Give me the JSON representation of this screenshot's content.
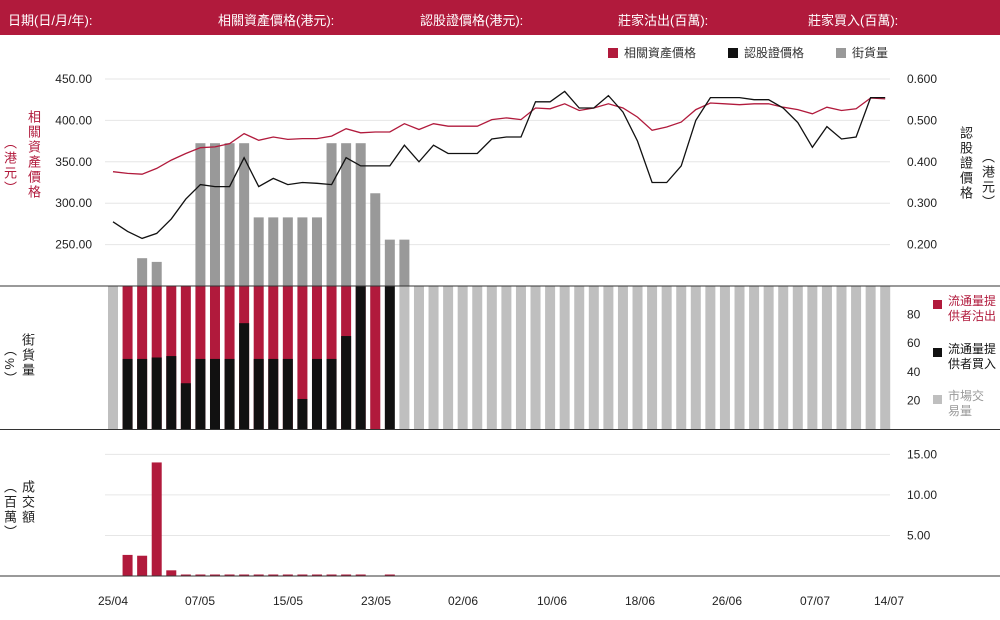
{
  "header": {
    "date": "日期(日/月/年):",
    "underlying": "相關資產價格(港元):",
    "warrant": "認股證價格(港元):",
    "sold": "莊家沽出(百萬):",
    "bought": "莊家買入(百萬):"
  },
  "legend": {
    "underlying": "相關資產價格",
    "warrant": "認股證價格",
    "outstanding": "街貨量"
  },
  "labels": {
    "left_axis_top": "相關資產價格",
    "left_axis_top_unit": "（港元）",
    "right_axis_top": "認股證價格",
    "right_axis_top_unit": "（港元）",
    "left_axis_mid": "街貨量",
    "left_axis_mid_unit": "（%）",
    "left_axis_bottom": "成交額",
    "left_axis_bottom_unit": "（百萬）",
    "mid_legend_sold": "流通量提供者沽出",
    "mid_legend_bought": "流通量提供者買入",
    "mid_legend_market": "市場交易量"
  },
  "colors": {
    "header_bg": "#b11a3c",
    "underlying": "#b11a3c",
    "warrant": "#111111",
    "outstanding": "#999999",
    "lp_sold": "#b11a3c",
    "lp_bought": "#111111",
    "market": "#bfbfbf",
    "turnover": "#b11a3c"
  },
  "chart_data": [
    {
      "type": "line",
      "title": "",
      "x_tick_labels": [
        "25/04",
        "07/05",
        "15/05",
        "23/05",
        "02/06",
        "10/06",
        "18/06",
        "26/06",
        "07/07",
        "14/07"
      ],
      "left_axis": {
        "ticks": [
          "450.00",
          "400.00",
          "350.00",
          "300.00",
          "250.00"
        ],
        "range": [
          200,
          450
        ]
      },
      "right_axis": {
        "ticks": [
          "0.600",
          "0.500",
          "0.400",
          "0.300",
          "0.200"
        ],
        "range": [
          0.1,
          0.6
        ]
      },
      "series": [
        {
          "name": "相關資產價格",
          "axis": "left",
          "values": [
            338,
            336,
            335,
            342,
            352,
            360,
            367,
            368,
            372,
            384,
            376,
            380,
            377,
            378,
            378,
            381,
            390,
            385,
            386,
            386,
            396,
            389,
            396,
            393,
            393,
            393,
            401,
            403,
            401,
            415,
            414,
            420,
            412,
            415,
            420,
            415,
            404,
            388,
            392,
            398,
            413,
            421,
            420,
            419,
            420,
            420,
            416,
            413,
            408,
            416,
            412,
            414,
            427,
            426
          ]
        },
        {
          "name": "認股證價格",
          "axis": "right",
          "values": [
            0.255,
            0.232,
            0.215,
            0.227,
            0.262,
            0.31,
            0.345,
            0.34,
            0.34,
            0.41,
            0.34,
            0.36,
            0.345,
            0.35,
            0.348,
            0.345,
            0.41,
            0.39,
            0.39,
            0.39,
            0.44,
            0.4,
            0.44,
            0.42,
            0.42,
            0.42,
            0.455,
            0.46,
            0.46,
            0.545,
            0.545,
            0.57,
            0.53,
            0.53,
            0.56,
            0.52,
            0.45,
            0.35,
            0.35,
            0.39,
            0.5,
            0.555,
            0.555,
            0.555,
            0.55,
            0.55,
            0.53,
            0.495,
            0.435,
            0.485,
            0.455,
            0.46,
            0.555,
            0.555
          ]
        },
        {
          "name": "街貨量",
          "axis": "left_pct",
          "values": [
            0,
            0,
            15,
            13,
            0,
            0,
            77,
            77,
            77,
            77,
            37,
            37,
            37,
            37,
            37,
            77,
            77,
            77,
            50,
            25,
            25,
            0,
            0,
            0,
            0,
            0,
            0,
            0,
            0,
            0,
            0,
            0,
            0,
            0,
            0,
            0,
            0,
            0,
            0,
            0,
            0,
            0,
            0,
            0,
            0,
            0,
            0,
            0,
            0,
            0,
            0,
            0,
            0,
            0
          ]
        }
      ]
    },
    {
      "type": "bar",
      "title": "",
      "y_axis": {
        "ticks": [
          "80",
          "60",
          "40",
          "20"
        ],
        "range": [
          0,
          100
        ]
      },
      "series": [
        {
          "name": "流通量提供者沽出",
          "values": [
            0,
            100,
            100,
            100,
            100,
            100,
            100,
            100,
            100,
            100,
            100,
            100,
            100,
            100,
            100,
            100,
            100,
            100,
            100,
            0,
            0,
            0,
            0,
            0,
            0,
            0,
            0,
            0,
            0,
            0,
            0,
            0,
            0,
            0,
            0,
            0,
            0,
            0,
            0,
            0,
            0,
            0,
            0,
            0,
            0,
            0,
            0,
            0,
            0,
            0,
            0,
            0,
            0,
            0
          ]
        },
        {
          "name": "流通量提供者買入",
          "values": [
            0,
            49,
            49,
            50,
            51,
            32,
            49,
            49,
            49,
            74,
            49,
            49,
            49,
            21,
            49,
            49,
            65,
            100,
            0,
            100,
            0,
            0,
            0,
            0,
            0,
            0,
            0,
            0,
            0,
            0,
            0,
            0,
            0,
            0,
            0,
            0,
            0,
            0,
            0,
            0,
            0,
            0,
            0,
            0,
            0,
            0,
            0,
            0,
            0,
            0,
            0,
            0,
            0,
            0
          ]
        },
        {
          "name": "市場交易量",
          "values": [
            100,
            0,
            0,
            0,
            0,
            0,
            0,
            0,
            0,
            0,
            0,
            0,
            0,
            0,
            0,
            0,
            0,
            0,
            100,
            0,
            100,
            100,
            100,
            100,
            100,
            100,
            100,
            100,
            100,
            100,
            100,
            100,
            100,
            100,
            100,
            100,
            100,
            100,
            100,
            100,
            100,
            100,
            100,
            100,
            100,
            100,
            100,
            100,
            100,
            100,
            100,
            100,
            100,
            100
          ]
        }
      ]
    },
    {
      "type": "bar",
      "title": "",
      "y_axis": {
        "ticks": [
          "15.00",
          "10.00",
          "5.00"
        ],
        "range": [
          0,
          18
        ]
      },
      "series": [
        {
          "name": "成交額",
          "values": [
            0,
            2.6,
            2.5,
            14.0,
            0.7,
            0.15,
            0.15,
            0.15,
            0.15,
            0.15,
            0.15,
            0.15,
            0.15,
            0.15,
            0.15,
            0.15,
            0.15,
            0.15,
            0,
            0.15,
            0,
            0,
            0,
            0,
            0,
            0,
            0,
            0,
            0,
            0,
            0,
            0,
            0,
            0,
            0,
            0,
            0,
            0,
            0,
            0,
            0,
            0,
            0,
            0,
            0,
            0,
            0,
            0,
            0,
            0,
            0,
            0,
            0,
            0
          ]
        }
      ]
    }
  ]
}
